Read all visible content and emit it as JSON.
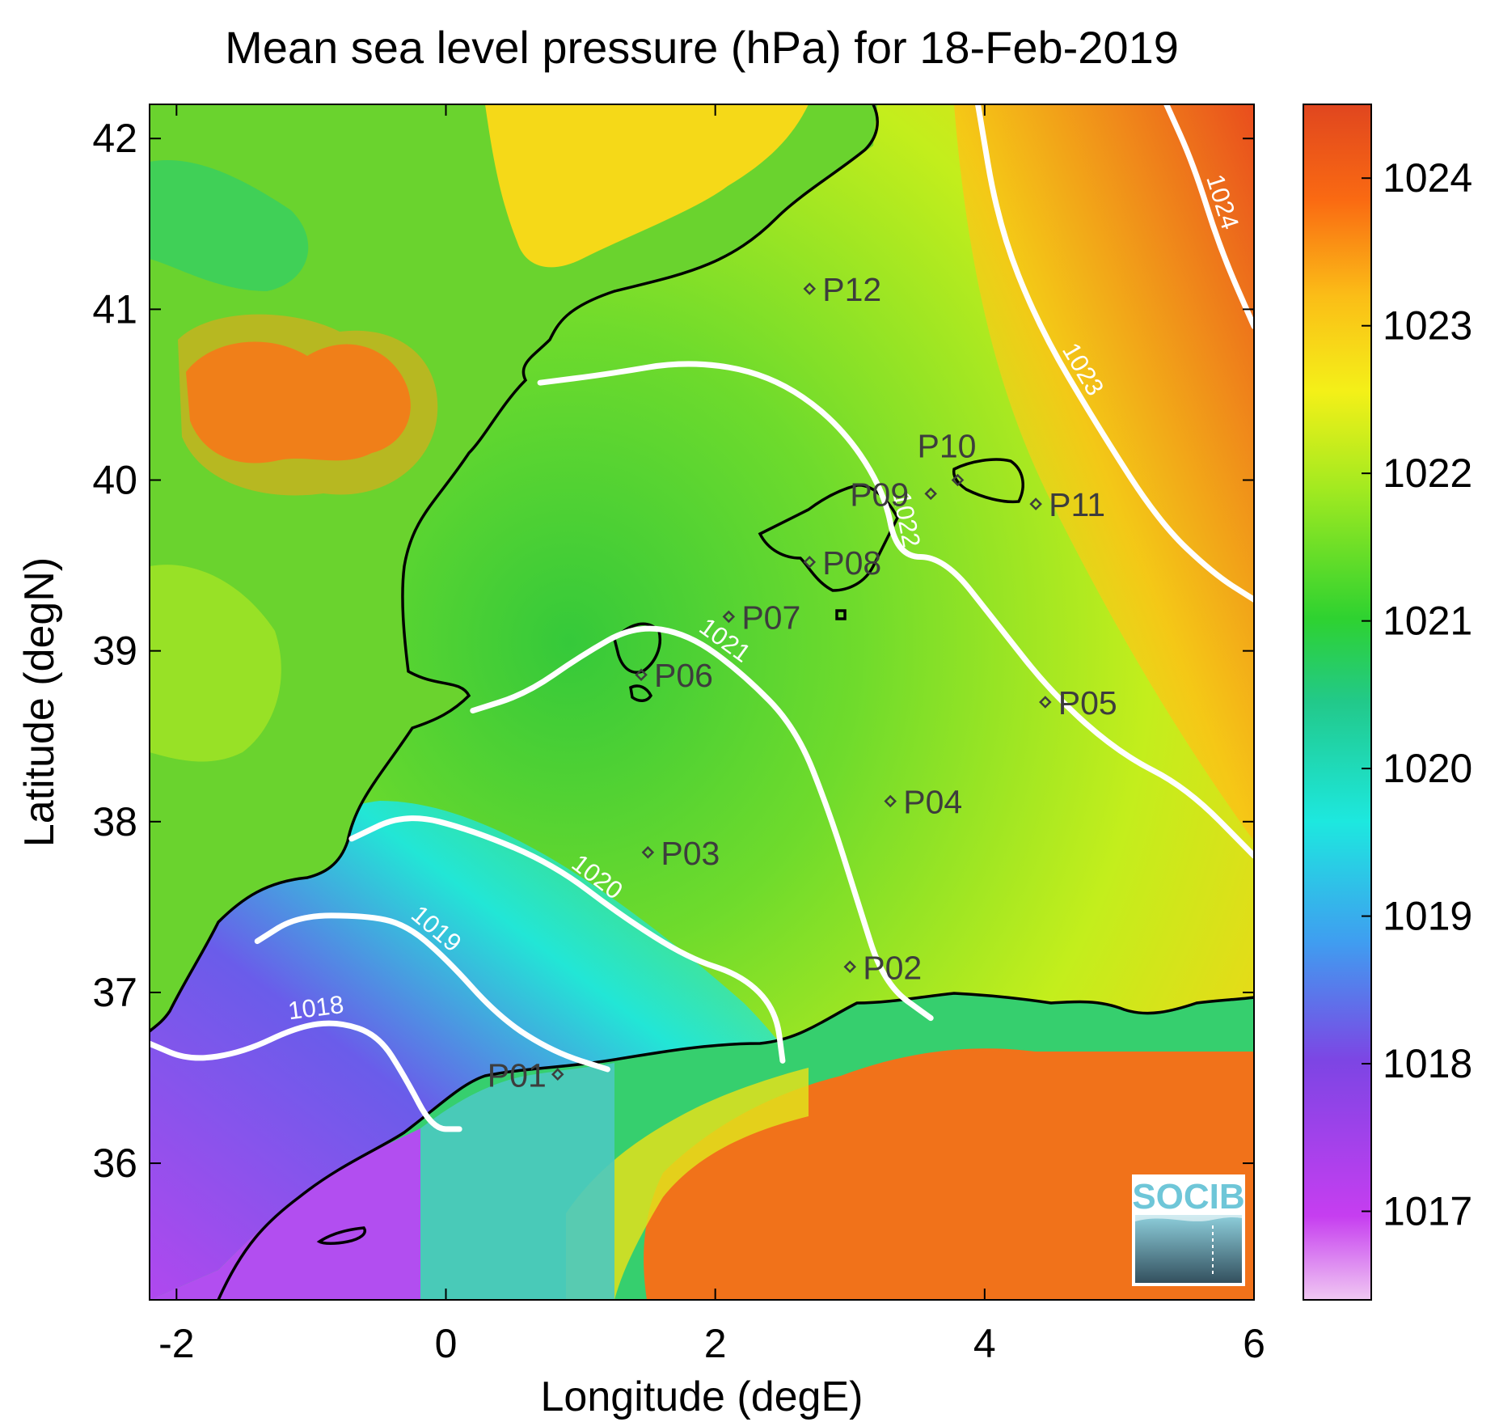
{
  "chart_data": {
    "type": "heatmap",
    "title": "Mean sea level pressure (hPa) for 18-Feb-2019",
    "xlabel": "Longitude (degE)",
    "ylabel": "Latitude (degN)",
    "xlim": [
      -2.2,
      6.0
    ],
    "ylim": [
      35.2,
      42.2
    ],
    "x_ticks": [
      -2,
      0,
      2,
      4,
      6
    ],
    "y_ticks": [
      36,
      37,
      38,
      39,
      40,
      41,
      42
    ],
    "colorbar": {
      "range": [
        1016.4,
        1024.5
      ],
      "ticks": [
        1017,
        1018,
        1019,
        1020,
        1021,
        1022,
        1023,
        1024
      ]
    },
    "contours": [
      {
        "level": 1018,
        "label": "1018",
        "points": [
          [
            -2.2,
            36.7
          ],
          [
            -1.9,
            36.6
          ],
          [
            -1.5,
            36.65
          ],
          [
            -1.1,
            36.8
          ],
          [
            -0.8,
            36.83
          ],
          [
            -0.5,
            36.75
          ],
          [
            -0.3,
            36.5
          ],
          [
            -0.1,
            36.2
          ],
          [
            0.1,
            36.2
          ]
        ]
      },
      {
        "level": 1019,
        "label": "1019",
        "points": [
          [
            -1.4,
            37.3
          ],
          [
            -1.1,
            37.45
          ],
          [
            -0.6,
            37.45
          ],
          [
            -0.3,
            37.4
          ],
          [
            0.0,
            37.2
          ],
          [
            0.4,
            36.85
          ],
          [
            0.8,
            36.65
          ],
          [
            1.2,
            36.55
          ]
        ]
      },
      {
        "level": 1020,
        "label": "1020",
        "points": [
          [
            -0.7,
            37.9
          ],
          [
            -0.3,
            38.05
          ],
          [
            0.2,
            37.95
          ],
          [
            0.8,
            37.75
          ],
          [
            1.3,
            37.45
          ],
          [
            1.8,
            37.2
          ],
          [
            2.2,
            37.1
          ],
          [
            2.45,
            36.9
          ],
          [
            2.5,
            36.6
          ]
        ]
      },
      {
        "level": 1021,
        "label": "1021",
        "points": [
          [
            0.2,
            38.65
          ],
          [
            0.6,
            38.75
          ],
          [
            1.0,
            38.97
          ],
          [
            1.4,
            39.15
          ],
          [
            1.8,
            39.1
          ],
          [
            2.2,
            38.87
          ],
          [
            2.6,
            38.55
          ],
          [
            2.85,
            38.05
          ],
          [
            3.05,
            37.55
          ],
          [
            3.25,
            37.05
          ],
          [
            3.6,
            36.85
          ]
        ]
      },
      {
        "level": 1022,
        "label": "1022",
        "points": [
          [
            0.7,
            40.57
          ],
          [
            1.2,
            40.62
          ],
          [
            1.8,
            40.7
          ],
          [
            2.4,
            40.62
          ],
          [
            2.9,
            40.35
          ],
          [
            3.25,
            39.95
          ],
          [
            3.35,
            39.55
          ],
          [
            3.7,
            39.55
          ],
          [
            4.1,
            39.15
          ],
          [
            4.5,
            38.75
          ],
          [
            5.0,
            38.4
          ],
          [
            5.5,
            38.2
          ],
          [
            6.0,
            37.8
          ]
        ]
      },
      {
        "level": 1023,
        "label": "1023",
        "points": [
          [
            3.95,
            42.2
          ],
          [
            4.1,
            41.5
          ],
          [
            4.4,
            40.9
          ],
          [
            4.85,
            40.3
          ],
          [
            5.3,
            39.75
          ],
          [
            5.7,
            39.45
          ],
          [
            6.0,
            39.3
          ]
        ]
      },
      {
        "level": 1024,
        "label": "1024",
        "points": [
          [
            5.35,
            42.2
          ],
          [
            5.55,
            41.85
          ],
          [
            5.75,
            41.35
          ],
          [
            6.0,
            40.9
          ]
        ]
      }
    ],
    "stations": [
      {
        "name": "P01",
        "lon": 0.83,
        "lat": 36.52
      },
      {
        "name": "P02",
        "lon": 3.0,
        "lat": 37.15
      },
      {
        "name": "P03",
        "lon": 1.5,
        "lat": 37.82
      },
      {
        "name": "P04",
        "lon": 3.3,
        "lat": 38.12
      },
      {
        "name": "P05",
        "lon": 4.45,
        "lat": 38.7
      },
      {
        "name": "P06",
        "lon": 1.45,
        "lat": 38.86
      },
      {
        "name": "P07",
        "lon": 2.1,
        "lat": 39.2
      },
      {
        "name": "P08",
        "lon": 2.7,
        "lat": 39.52
      },
      {
        "name": "P09",
        "lon": 3.6,
        "lat": 39.92
      },
      {
        "name": "P10",
        "lon": 3.8,
        "lat": 40.0
      },
      {
        "name": "P11",
        "lon": 4.38,
        "lat": 39.86
      },
      {
        "name": "P12",
        "lon": 2.7,
        "lat": 41.12
      }
    ]
  },
  "logo": {
    "text": "SOCIB"
  }
}
